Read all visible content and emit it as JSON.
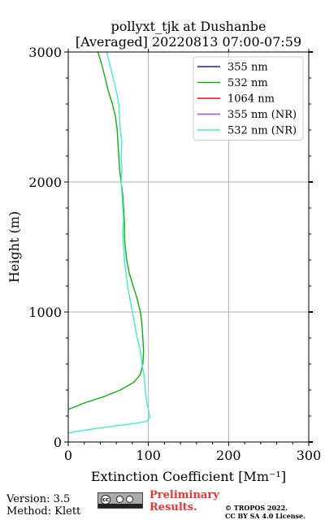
{
  "header": {
    "title_line1": "pollyxt_tjk at Dushanbe",
    "title_line2": "[Averaged] 20220813 07:00-07:59"
  },
  "footer": {
    "version": "Version: 3.5",
    "method": "Method: Klett",
    "preliminary_line1": "Preliminary",
    "preliminary_line2": "Results.",
    "copyright_line1": "© TROPOS 2022.",
    "copyright_line2": "CC BY SA 4.0 License.",
    "license_badge": "CC BY SA"
  },
  "chart_data": {
    "type": "line",
    "title": "pollyxt_tjk at Dushanbe [Averaged] 20220813 07:00-07:59",
    "xlabel": "Extinction Coefficient [Mm⁻¹]",
    "ylabel": "Height (m)",
    "xlim": [
      0,
      300
    ],
    "ylim": [
      0,
      3000
    ],
    "x_ticks": [
      0,
      100,
      200,
      300
    ],
    "y_ticks": [
      0,
      1000,
      2000,
      3000
    ],
    "x_tick_labels": [
      "0",
      "100",
      "200",
      "300"
    ],
    "y_tick_labels": [
      "0",
      "1000",
      "2000",
      "3000"
    ],
    "grid": true,
    "legend_position": "top-right",
    "series": [
      {
        "name": "355 nm",
        "color": "#1a1acc",
        "points": []
      },
      {
        "name": "532 nm",
        "color": "#10b010",
        "points": [
          [
            0,
            250
          ],
          [
            20,
            300
          ],
          [
            45,
            350
          ],
          [
            65,
            400
          ],
          [
            82,
            460
          ],
          [
            90,
            520
          ],
          [
            93,
            600
          ],
          [
            94,
            700
          ],
          [
            93,
            800
          ],
          [
            92,
            900
          ],
          [
            90,
            1000
          ],
          [
            86,
            1100
          ],
          [
            81,
            1200
          ],
          [
            76,
            1300
          ],
          [
            73,
            1400
          ],
          [
            71,
            1500
          ],
          [
            70,
            1600
          ],
          [
            70,
            1700
          ],
          [
            69,
            1800
          ],
          [
            68,
            1900
          ],
          [
            66,
            2000
          ],
          [
            64,
            2100
          ],
          [
            63,
            2200
          ],
          [
            62,
            2300
          ],
          [
            61,
            2400
          ],
          [
            59,
            2500
          ],
          [
            55,
            2600
          ],
          [
            50,
            2700
          ],
          [
            46,
            2800
          ],
          [
            42,
            2900
          ],
          [
            37,
            3000
          ]
        ]
      },
      {
        "name": "1064 nm",
        "color": "#dd1111",
        "points": []
      },
      {
        "name": "355 nm (NR)",
        "color": "#9b4fe0",
        "points": []
      },
      {
        "name": "532 nm (NR)",
        "color": "#40f0c8",
        "points": [
          [
            0,
            70
          ],
          [
            30,
            100
          ],
          [
            60,
            125
          ],
          [
            85,
            145
          ],
          [
            98,
            160
          ],
          [
            102,
            190
          ],
          [
            100,
            250
          ],
          [
            98,
            300
          ],
          [
            96,
            400
          ],
          [
            95,
            500
          ],
          [
            92,
            600
          ],
          [
            90,
            700
          ],
          [
            86,
            800
          ],
          [
            83,
            900
          ],
          [
            80,
            1000
          ],
          [
            77,
            1100
          ],
          [
            74,
            1200
          ],
          [
            72,
            1300
          ],
          [
            70,
            1400
          ],
          [
            69,
            1500
          ],
          [
            68,
            1600
          ],
          [
            69,
            1700
          ],
          [
            68,
            1800
          ],
          [
            67,
            1900
          ],
          [
            66,
            2000
          ],
          [
            67,
            2100
          ],
          [
            66,
            2200
          ],
          [
            67,
            2300
          ],
          [
            65,
            2400
          ],
          [
            64,
            2500
          ],
          [
            63,
            2600
          ],
          [
            60,
            2700
          ],
          [
            56,
            2800
          ],
          [
            52,
            2900
          ],
          [
            48,
            3000
          ]
        ]
      }
    ]
  }
}
